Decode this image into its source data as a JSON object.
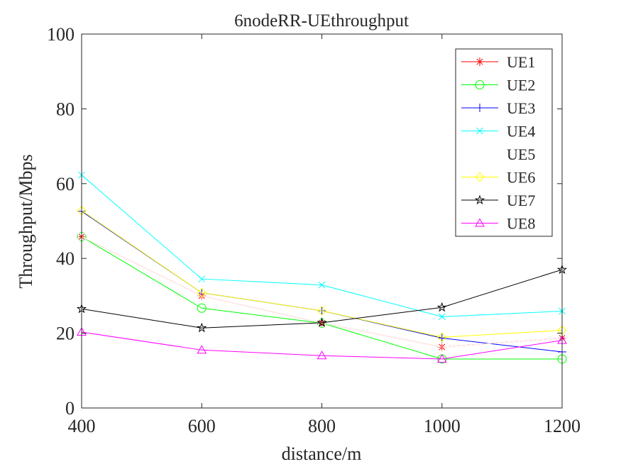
{
  "chart_data": {
    "type": "line",
    "title": "6nodeRR-UEthroughput",
    "xlabel": "distance/m",
    "ylabel": "Throughput/Mbps",
    "x": [
      400,
      600,
      800,
      1000,
      1200
    ],
    "xlim": [
      400,
      1200
    ],
    "ylim": [
      0,
      100
    ],
    "xticks": [
      400,
      600,
      800,
      1000,
      1200
    ],
    "yticks": [
      0,
      20,
      40,
      60,
      80,
      100
    ],
    "grid": false,
    "legend_position": "top-right",
    "series": [
      {
        "name": "UE1",
        "color": "#ff0000",
        "marker": "asterisk",
        "values": [
          45.8,
          30.0,
          22.7,
          16.3,
          18.7
        ]
      },
      {
        "name": "UE2",
        "color": "#00ff00",
        "marker": "circle",
        "values": [
          45.8,
          26.7,
          22.7,
          13.1,
          13.1
        ]
      },
      {
        "name": "UE3",
        "color": "#0000ff",
        "marker": "plus",
        "values": [
          52.6,
          30.8,
          26.0,
          18.7,
          15.0
        ]
      },
      {
        "name": "UE4",
        "color": "#00ffff",
        "marker": "x",
        "values": [
          62.3,
          34.5,
          32.9,
          24.4,
          25.9
        ]
      },
      {
        "name": "UE5",
        "color": "#ffffff",
        "marker": "square",
        "values": [
          45.8,
          30.0,
          22.7,
          16.3,
          18.7
        ]
      },
      {
        "name": "UE6",
        "color": "#ffff00",
        "marker": "diamond",
        "values": [
          52.8,
          30.8,
          26.0,
          18.9,
          20.8
        ]
      },
      {
        "name": "UE7",
        "color": "#000000",
        "marker": "pentagram",
        "values": [
          26.5,
          21.4,
          22.8,
          26.9,
          37.0
        ]
      },
      {
        "name": "UE8",
        "color": "#ff00ff",
        "marker": "triangle",
        "values": [
          20.3,
          15.5,
          14.0,
          13.1,
          18.1
        ]
      }
    ]
  }
}
